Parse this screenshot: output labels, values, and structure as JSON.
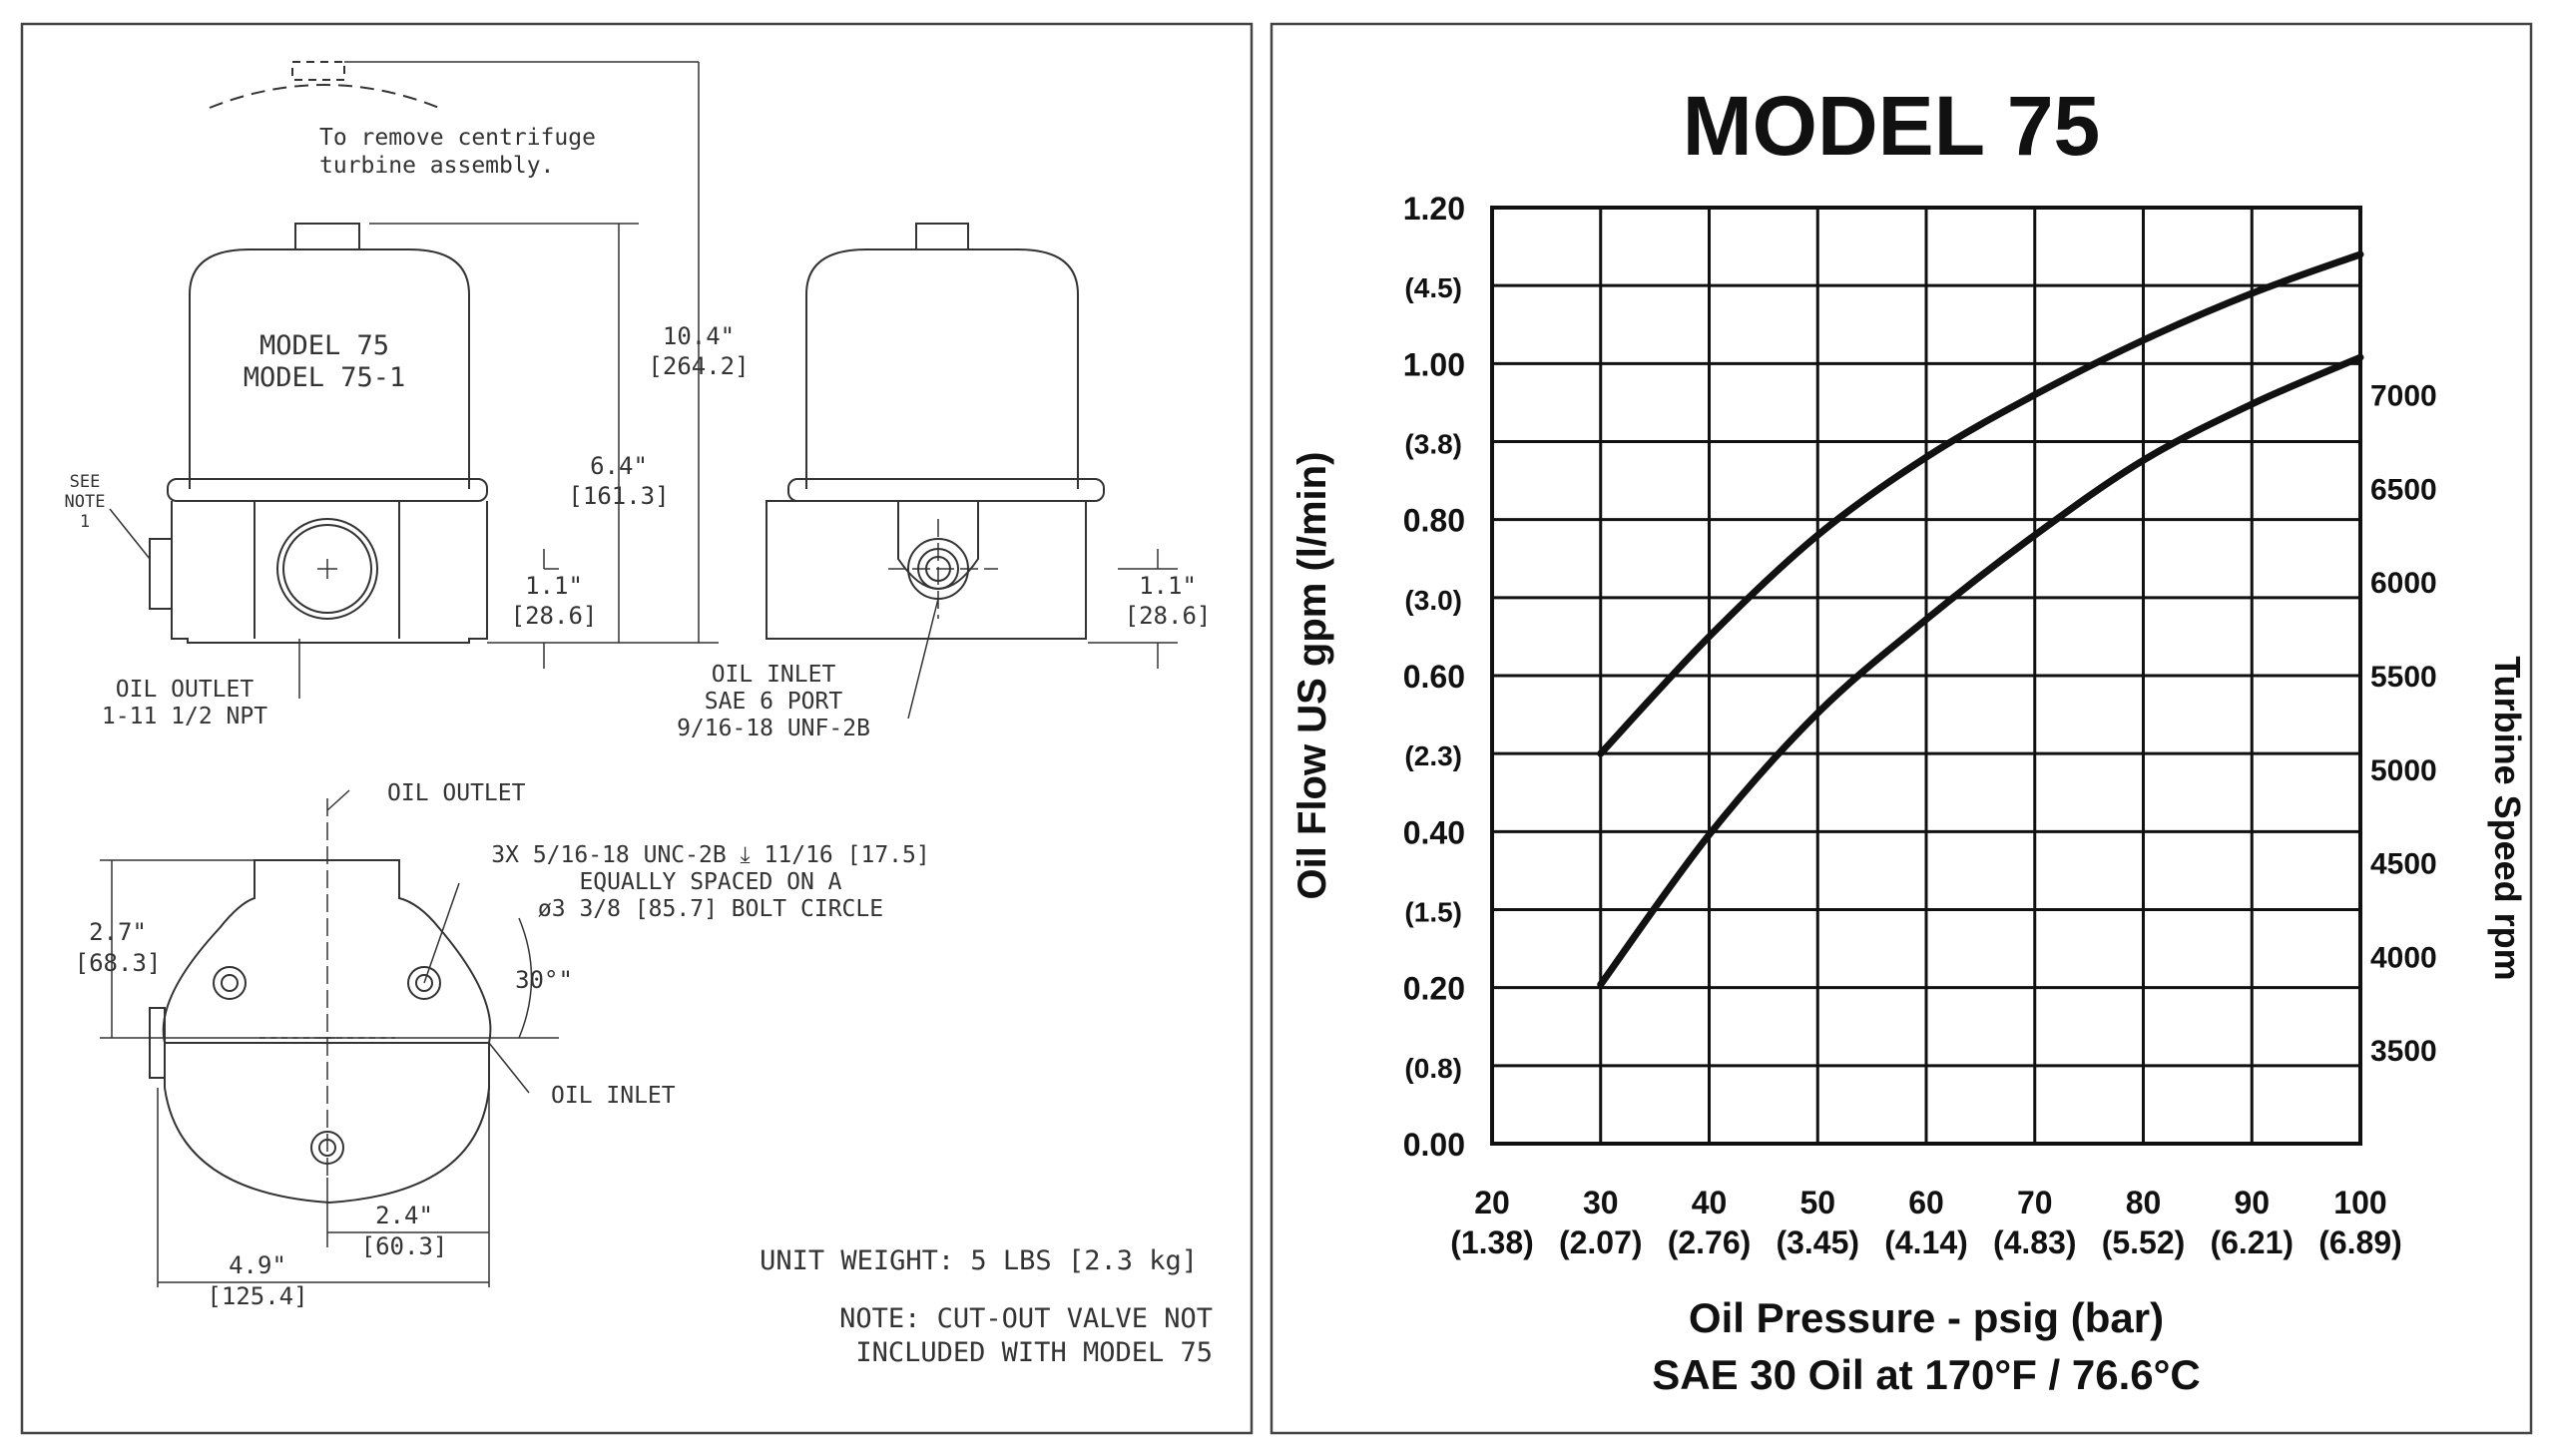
{
  "drawing": {
    "clearance_note": [
      "To remove centrifuge",
      "turbine assembly."
    ],
    "model_labels": [
      "MODEL 75",
      "MODEL 75-1"
    ],
    "overall_height": [
      "10.4\"",
      "[264.2]"
    ],
    "body_height": [
      "6.4\"",
      "[161.3]"
    ],
    "outlet_height": [
      "1.1\"",
      "[28.6]"
    ],
    "inlet_height": [
      "1.1\"",
      "[28.6]"
    ],
    "see_note": [
      "SEE",
      "NOTE",
      "1"
    ],
    "oil_outlet_spec": [
      "OIL OUTLET",
      "1-11 1/2 NPT"
    ],
    "oil_inlet_spec": [
      "OIL INLET",
      "SAE 6 PORT",
      "9/16-18 UNF-2B"
    ],
    "top_oil_outlet": "OIL OUTLET",
    "bolt_spec": [
      "3X 5/16-18 UNC-2B ⤓ 11/16 [17.5]",
      "EQUALLY SPACED ON A",
      "ø3 3/8 [85.7] BOLT CIRCLE"
    ],
    "height_top": [
      "2.7\"",
      "[68.3]"
    ],
    "angle": "30°\"",
    "top_oil_inlet": "OIL INLET",
    "offset_width": [
      "2.4\"",
      "[60.3]"
    ],
    "overall_width": [
      "4.9\"",
      "[125.4]"
    ],
    "unit_weight": "UNIT WEIGHT: 5 LBS [2.3 kg]",
    "note": [
      "NOTE: CUT-OUT VALVE NOT",
      "INCLUDED WITH MODEL 75"
    ]
  },
  "chart_data": {
    "type": "line",
    "title": "MODEL 75",
    "xlabel": "Oil Pressure - psig (bar)",
    "xlabel_sub": "SAE 30 Oil at 170°F / 76.6°C",
    "ylabel": "Oil Flow US gpm (l/min)",
    "y2label": "Turbine Speed rpm",
    "xlim": [
      20,
      100
    ],
    "ylim": [
      0,
      1.2
    ],
    "y2lim": [
      3000,
      8000
    ],
    "x_ticks": [
      20,
      30,
      40,
      50,
      60,
      70,
      80,
      90,
      100
    ],
    "x_ticks_sub": [
      "(1.38)",
      "(2.07)",
      "(2.76)",
      "(3.45)",
      "(4.14)",
      "(4.83)",
      "(5.52)",
      "(6.21)",
      "(6.89)"
    ],
    "y_ticks": [
      "0.00",
      "0.20",
      "0.40",
      "0.60",
      "0.80",
      "1.00",
      "1.20"
    ],
    "y_ticks_sub": [
      "(0.8)",
      "(1.5)",
      "(2.3)",
      "(3.0)",
      "(3.8)",
      "(4.5)"
    ],
    "y2_ticks": [
      3500,
      4000,
      4500,
      5000,
      5500,
      6000,
      6500,
      7000
    ],
    "grid": true,
    "series": [
      {
        "axis": "left",
        "x": [
          30,
          40,
          50,
          60,
          70,
          80,
          90,
          100
        ],
        "y": [
          0.5,
          0.65,
          0.78,
          0.88,
          0.96,
          1.03,
          1.09,
          1.14
        ]
      },
      {
        "axis": "right",
        "x": [
          30,
          40,
          50,
          60,
          70,
          80,
          90,
          100
        ],
        "y": [
          3850,
          4650,
          5300,
          5800,
          6250,
          6650,
          6950,
          7200
        ]
      }
    ]
  }
}
